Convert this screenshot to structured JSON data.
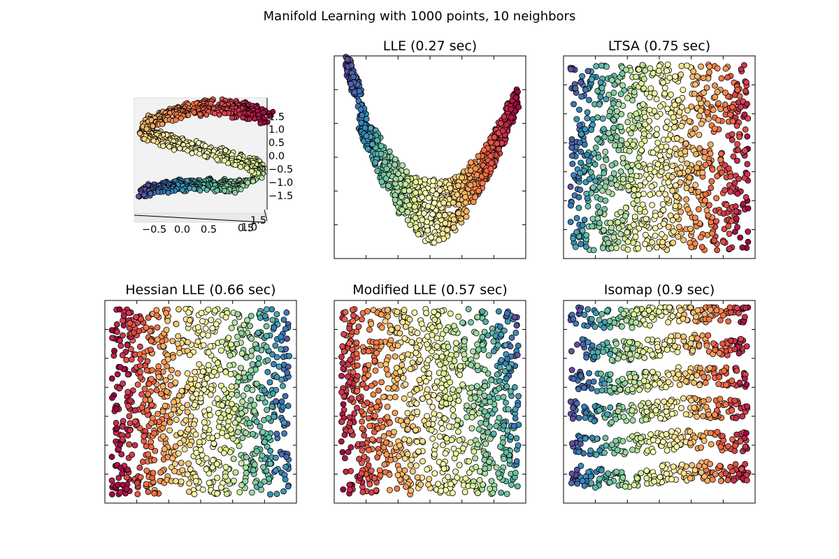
{
  "figure": {
    "title": "Manifold Learning with 1000 points, 10 neighbors"
  },
  "colors": {
    "spectral": [
      "#9e0142",
      "#d53e4f",
      "#f46d43",
      "#fdae61",
      "#fee08b",
      "#ffffbf",
      "#e6f598",
      "#abdda4",
      "#66c2a5",
      "#3288bd",
      "#5e4fa2"
    ],
    "marker_edge": "#000000",
    "axes_edge": "#000000",
    "pane": "#f2f2f2"
  },
  "chart_data": [
    {
      "type": "scatter",
      "projection": "3d",
      "title": "",
      "description_shape": "S-curve",
      "n_points": 1000,
      "xticks": [
        "−0.5",
        "0.0",
        "0.5"
      ],
      "yticks": [
        "1.5",
        "1.0"
      ],
      "yticks_extra": [
        "0.5"
      ],
      "zticks": [
        "1.5",
        "1.0",
        "0.5",
        "0.0",
        "−0.5",
        "−1.0",
        "−1.5"
      ],
      "colormap": "spectral"
    },
    {
      "type": "scatter",
      "title": "LLE (0.27 sec)",
      "shape": "u-curve",
      "n_points": 1000,
      "tick_labels_shown": false,
      "colormap": "spectral"
    },
    {
      "type": "scatter",
      "title": "LTSA (0.75 sec)",
      "shape": "filled-square",
      "color_gradient": "left-blue-to-right-red",
      "n_points": 1000,
      "tick_labels_shown": false,
      "colormap": "spectral"
    },
    {
      "type": "scatter",
      "title": "Hessian LLE (0.66 sec)",
      "shape": "filled-square",
      "color_gradient": "left-red-to-right-blue",
      "n_points": 1000,
      "tick_labels_shown": false,
      "colormap": "spectral"
    },
    {
      "type": "scatter",
      "title": "Modified LLE (0.57 sec)",
      "shape": "filled-square",
      "color_gradient": "left-red-to-right-blue",
      "n_points": 1000,
      "tick_labels_shown": false,
      "colormap": "spectral"
    },
    {
      "type": "scatter",
      "title": "Isomap (0.9 sec)",
      "shape": "filled-square-banded",
      "color_gradient": "left-blue-to-right-red",
      "n_points": 1000,
      "tick_labels_shown": false,
      "colormap": "spectral"
    }
  ]
}
